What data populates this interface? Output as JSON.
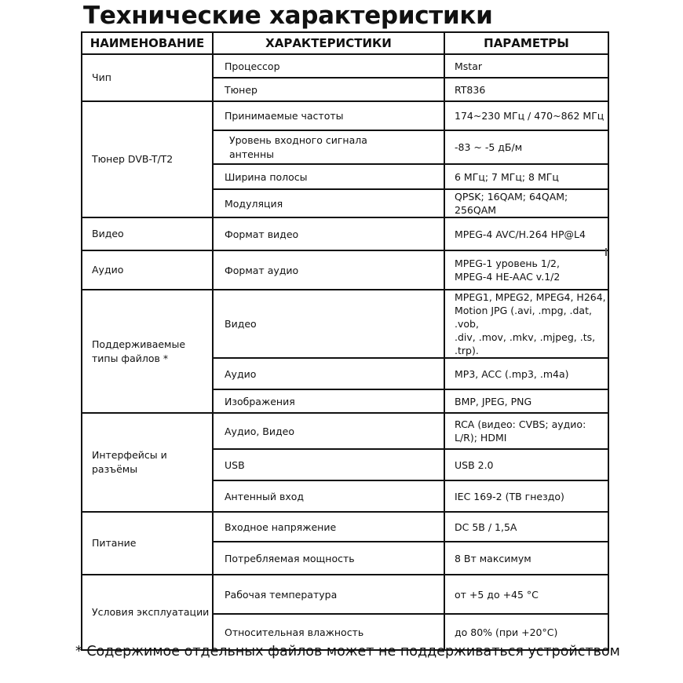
{
  "title": "Технические характеристики",
  "headers": [
    "НАИМЕНОВАНИЕ",
    "ХАРАКТЕРИСТИКИ",
    "ПАРАМЕТРЫ"
  ],
  "groups": [
    {
      "name": "Чип",
      "rows": [
        {
          "feature": "Процессор",
          "value": "Mstar"
        },
        {
          "feature": "Тюнер",
          "value": "RT836"
        }
      ]
    },
    {
      "name": "Тюнер DVB-T/T2",
      "rows": [
        {
          "feature": "Принимаемые частоты",
          "value": "174~230 МГц  / 470~862 МГц"
        },
        {
          "feature": "Уровень входного сигнала антенны",
          "value": "-83 ~ -5 дБ/м"
        },
        {
          "feature": "Ширина полосы",
          "value": "6 МГц; 7 МГц; 8 МГц"
        },
        {
          "feature": "Модуляция",
          "value": "QPSK; 16QAM; 64QAM; 256QAM"
        }
      ]
    },
    {
      "name": "Видео",
      "rows": [
        {
          "feature": "Формат видео",
          "value": "MPEG-4 AVC/H.264 HP@L4"
        }
      ]
    },
    {
      "name": "Аудио",
      "rows": [
        {
          "feature": "Формат аудио",
          "value": "MPEG-1  уровень 1/2,\nMPEG-4 HE-AAC v.1/2"
        }
      ]
    },
    {
      "name": "Поддерживаемые типы файлов *",
      "rows": [
        {
          "feature": "Видео",
          "value": "MPEG1, MPEG2, MPEG4, H264,\nMotion JPG (.avi, .mpg, .dat, .vob,\n.div, .mov, .mkv, .mjpeg, .ts, .trp)."
        },
        {
          "feature": "Аудио",
          "value": "MP3, ACC (.mp3, .m4a)"
        },
        {
          "feature": "Изображения",
          "value": "BMP, JPEG, PNG"
        }
      ]
    },
    {
      "name": "Интерфейсы и разъёмы",
      "rows": [
        {
          "feature": "Аудио, Видео",
          "value": "RCA  (видео: CVBS; аудио: L/R); HDMI"
        },
        {
          "feature": "USB",
          "value": "USB 2.0"
        },
        {
          "feature": "Антенный вход",
          "value": "IEC 169-2 (ТВ гнездо)"
        }
      ]
    },
    {
      "name": "Питание",
      "rows": [
        {
          "feature": "Входное напряжение",
          "value": "DC 5В / 1,5А"
        },
        {
          "feature": "Потребляемая мощность",
          "value": "8 Вт максимум"
        }
      ]
    },
    {
      "name": "Условия эксплуатации",
      "rows": [
        {
          "feature": "Рабочая температура",
          "value": "от +5 до +45 °С"
        },
        {
          "feature": "Относительная влажность",
          "value": "до 80% (при +20°С)"
        }
      ]
    }
  ],
  "footnote": "* Содержимое отдельных файлов может не поддерживаться устройством"
}
